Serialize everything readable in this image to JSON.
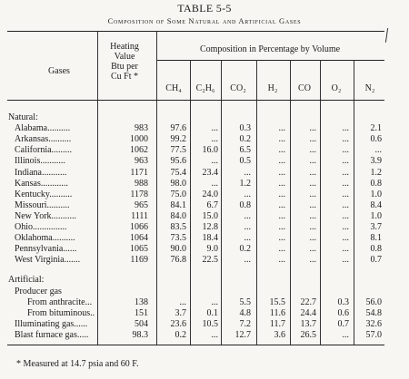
{
  "table": {
    "title": "TABLE 5-5",
    "subtitle": "Composition of Some Natural and Artificial Gases",
    "headers": {
      "gases": "Gases",
      "heating": [
        "Heating",
        "Value",
        "Btu per",
        "Cu Ft *"
      ],
      "composition": "Composition in Percentage by Volume",
      "columns": [
        "CH₄",
        "C₂H₆",
        "CO₂",
        "H₂",
        "CO",
        "O₂",
        "N₂"
      ]
    },
    "sections": [
      {
        "name": "Natural:",
        "rows": [
          {
            "label": "Alabama..........",
            "values": [
              "983",
              "97.6",
              "...",
              "0.3",
              "...",
              "...",
              "...",
              "2.1"
            ]
          },
          {
            "label": "Arkansas..........",
            "values": [
              "1000",
              "99.2",
              "...",
              "0.2",
              "...",
              "...",
              "...",
              "0.6"
            ]
          },
          {
            "label": "California.........",
            "values": [
              "1062",
              "77.5",
              "16.0",
              "6.5",
              "...",
              "...",
              "...",
              "..."
            ]
          },
          {
            "label": "Illinois...........",
            "values": [
              "963",
              "95.6",
              "...",
              "0.5",
              "...",
              "...",
              "...",
              "3.9"
            ]
          },
          {
            "label": "Indiana...........",
            "values": [
              "1171",
              "75.4",
              "23.4",
              "...",
              "...",
              "...",
              "...",
              "1.2"
            ]
          },
          {
            "label": "Kansas............",
            "values": [
              "988",
              "98.0",
              "...",
              "1.2",
              "...",
              "...",
              "...",
              "0.8"
            ]
          },
          {
            "label": "Kentucky..........",
            "values": [
              "1178",
              "75.0",
              "24.0",
              "...",
              "...",
              "...",
              "...",
              "1.0"
            ]
          },
          {
            "label": "Missouri..........",
            "values": [
              "965",
              "84.1",
              "6.7",
              "0.8",
              "...",
              "...",
              "...",
              "8.4"
            ]
          },
          {
            "label": "New York...........",
            "values": [
              "1111",
              "84.0",
              "15.0",
              "...",
              "...",
              "...",
              "...",
              "1.0"
            ]
          },
          {
            "label": "Ohio...............",
            "values": [
              "1066",
              "83.5",
              "12.8",
              "...",
              "...",
              "...",
              "...",
              "3.7"
            ]
          },
          {
            "label": "Oklahoma..........",
            "values": [
              "1064",
              "73.5",
              "18.4",
              "...",
              "...",
              "...",
              "...",
              "8.1"
            ]
          },
          {
            "label": "Pennsylvania......",
            "values": [
              "1065",
              "90.0",
              "9.0",
              "0.2",
              "...",
              "...",
              "...",
              "0.8"
            ]
          },
          {
            "label": "West Virginia.......",
            "values": [
              "1169",
              "76.8",
              "22.5",
              "...",
              "...",
              "...",
              "...",
              "0.7"
            ]
          }
        ]
      },
      {
        "name": "Artificial:",
        "rows": [
          {
            "label": "Producer gas",
            "indent": 1,
            "values": [
              "",
              "",
              "",
              "",
              "",
              "",
              "",
              ""
            ]
          },
          {
            "label": "From anthracite...",
            "indent": 2,
            "values": [
              "138",
              "...",
              "...",
              "5.5",
              "15.5",
              "22.7",
              "0.3",
              "56.0"
            ]
          },
          {
            "label": "From bituminous..",
            "indent": 2,
            "values": [
              "151",
              "3.7",
              "0.1",
              "4.8",
              "11.6",
              "24.4",
              "0.6",
              "54.8"
            ]
          },
          {
            "label": "Illuminating gas......",
            "indent": 1,
            "values": [
              "504",
              "23.6",
              "10.5",
              "7.2",
              "11.7",
              "13.7",
              "0.7",
              "32.6"
            ]
          },
          {
            "label": "Blast furnace gas.....",
            "indent": 1,
            "values": [
              "98.3",
              "0.2",
              "...",
              "12.7",
              "3.6",
              "26.5",
              "...",
              "57.0"
            ]
          }
        ]
      }
    ],
    "footnote": "* Measured at 14.7 psia and 60 F."
  }
}
